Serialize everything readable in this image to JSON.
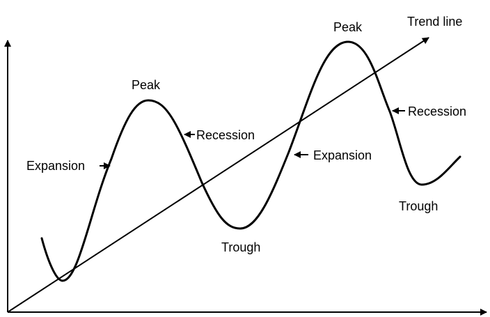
{
  "labels": {
    "trend_line": "Trend line",
    "peak_1": "Peak",
    "peak_2": "Peak",
    "expansion_1": "Expansion",
    "expansion_2": "Expansion",
    "recession_1": "Recession",
    "recession_2": "Recession",
    "trough_1": "Trough",
    "trough_2": "Trough"
  },
  "colors": {
    "ink": "#000000",
    "background": "#ffffff"
  }
}
